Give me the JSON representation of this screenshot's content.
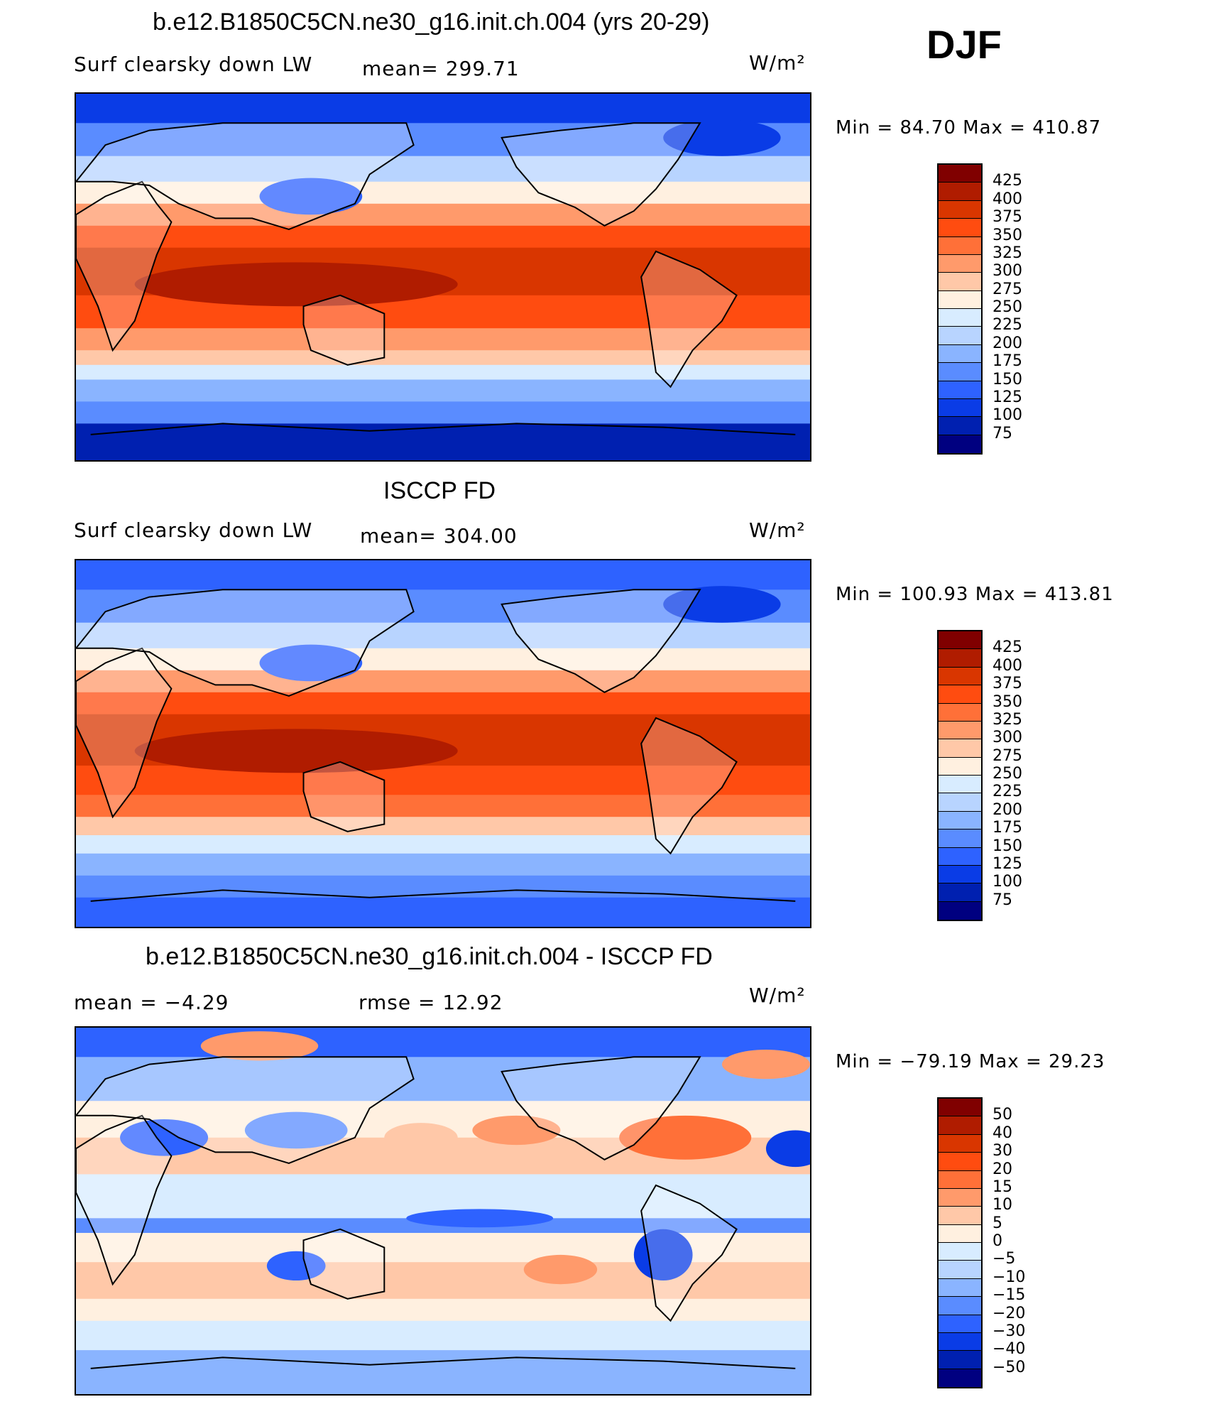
{
  "season": "DJF",
  "panels": [
    {
      "title": "b.e12.B1850C5CN.ne30_g16.init.ch.004 (yrs 20-29)",
      "left_label": "Surf clearsky down LW",
      "stat1": "mean= 299.71",
      "stat2": "",
      "units": "W/m²",
      "minmax": "Min =  84.70 Max = 410.87",
      "colorbar": {
        "labels": [
          "425",
          "400",
          "375",
          "350",
          "325",
          "300",
          "275",
          "250",
          "225",
          "200",
          "175",
          "150",
          "125",
          "100",
          "75"
        ],
        "colors": [
          "#800000",
          "#b01c00",
          "#d93600",
          "#ff4c10",
          "#ff7038",
          "#ff9a6b",
          "#ffc8a8",
          "#fff0e0",
          "#d8ecff",
          "#b8d4ff",
          "#8ab4ff",
          "#5a8cff",
          "#2e62ff",
          "#0a3ce6",
          "#0020b0",
          "#000080"
        ]
      },
      "map_style": "model"
    },
    {
      "title": "ISCCP FD",
      "left_label": "Surf clearsky down LW",
      "stat1": "mean= 304.00",
      "stat2": "",
      "units": "W/m²",
      "minmax": "Min = 100.93 Max = 413.81",
      "colorbar": {
        "labels": [
          "425",
          "400",
          "375",
          "350",
          "325",
          "300",
          "275",
          "250",
          "225",
          "200",
          "175",
          "150",
          "125",
          "100",
          "75"
        ],
        "colors": [
          "#800000",
          "#b01c00",
          "#d93600",
          "#ff4c10",
          "#ff7038",
          "#ff9a6b",
          "#ffc8a8",
          "#fff0e0",
          "#d8ecff",
          "#b8d4ff",
          "#8ab4ff",
          "#5a8cff",
          "#2e62ff",
          "#0a3ce6",
          "#0020b0",
          "#000080"
        ]
      },
      "map_style": "obs"
    },
    {
      "title": "b.e12.B1850C5CN.ne30_g16.init.ch.004 - ISCCP FD",
      "left_label": "mean =   −4.29",
      "stat1": "rmse =   12.92",
      "stat2": "",
      "units": "W/m²",
      "minmax": "Min = −79.19 Max =   29.23",
      "colorbar": {
        "labels": [
          "50",
          "40",
          "30",
          "20",
          "15",
          "10",
          "5",
          "0",
          "−5",
          "−10",
          "−15",
          "−20",
          "−30",
          "−40",
          "−50"
        ],
        "colors": [
          "#800000",
          "#b01c00",
          "#d93600",
          "#ff4c10",
          "#ff7038",
          "#ff9a6b",
          "#ffc8a8",
          "#fff0e0",
          "#d8ecff",
          "#b8d4ff",
          "#8ab4ff",
          "#5a8cff",
          "#2e62ff",
          "#0a3ce6",
          "#0020b0",
          "#000080"
        ]
      },
      "map_style": "diff"
    }
  ]
}
